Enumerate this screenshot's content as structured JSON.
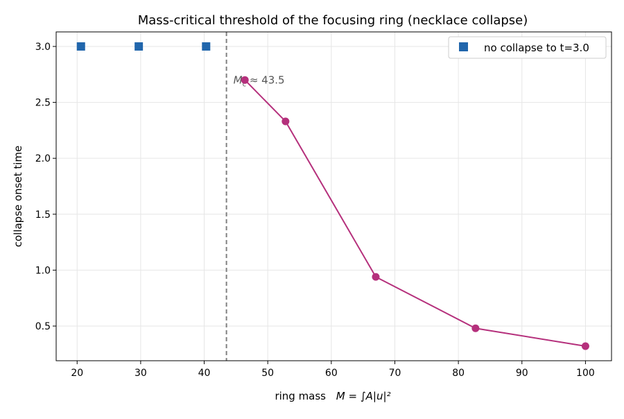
{
  "chart_data": {
    "type": "line",
    "title": "Mass-critical threshold of the focusing ring (necklace collapse)",
    "xlabel_text": "ring mass",
    "xlabel_math": "M = ∫A|u|²",
    "ylabel": "collapse onset time",
    "xlim": [
      16.7,
      104.1
    ],
    "ylim": [
      0.19,
      3.13
    ],
    "xticks": [
      20,
      30,
      40,
      50,
      60,
      70,
      80,
      90,
      100
    ],
    "yticks": [
      0.5,
      1.0,
      1.5,
      2.0,
      2.5,
      3.0
    ],
    "grid": true,
    "legend_position": "top-right",
    "critical_line": {
      "x": 43.5,
      "label": "M_c ≈ 43.5",
      "color": "#808080"
    },
    "series": [
      {
        "name": "no collapse to t=3.0",
        "marker": "square",
        "color": "#2166ac",
        "x": [
          20.6,
          29.7,
          40.3
        ],
        "y": [
          3.0,
          3.0,
          3.0
        ]
      },
      {
        "marker": "circle",
        "line": true,
        "color": "#b5307c",
        "x": [
          46.4,
          52.8,
          67.0,
          82.7,
          100.0
        ],
        "y": [
          2.7,
          2.33,
          0.94,
          0.48,
          0.32
        ]
      }
    ]
  }
}
